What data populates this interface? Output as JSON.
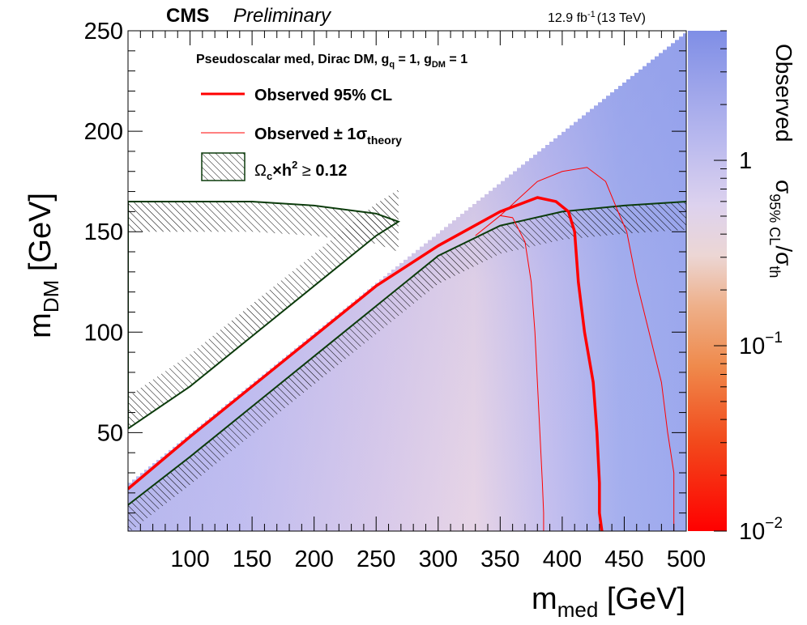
{
  "header": {
    "experiment": "CMS",
    "status": "Preliminary",
    "lumi_value": "12.9 fb",
    "lumi_exp": "-1",
    "lumi_energy": "(13 TeV)"
  },
  "model": {
    "prefix": "Pseudoscalar med, Dirac DM, g",
    "q_sub": "q",
    "middle": " = 1, g",
    "dm_sub": "DM",
    "suffix": " = 1"
  },
  "legend": {
    "observed": "Observed 95% CL",
    "observed_theory_prefix": "Observed ± 1σ",
    "observed_theory_sub": "theory",
    "relic_omega": "Ω",
    "relic_c": "c",
    "relic_mid": "×h",
    "relic_sup": "2",
    "relic_cond": " ≥ ",
    "relic_value": "0.12"
  },
  "colors": {
    "observed": "#ff0000",
    "relic_line": "#0b3b0b",
    "hatch": "#000000",
    "colorbar_low": "#ff0000",
    "colorbar_mid": "#f0dede",
    "colorbar_high": "#7f8ee6"
  },
  "chart_data": {
    "type": "heatmap",
    "xlabel_main": "m",
    "xlabel_sub": "med",
    "xlabel_unit": " [GeV]",
    "ylabel_main": "m",
    "ylabel_sub": "DM",
    "ylabel_unit": " [GeV]",
    "xlim": [
      50,
      500
    ],
    "ylim": [
      1,
      250
    ],
    "xticks": [
      100,
      150,
      200,
      250,
      300,
      350,
      400,
      450,
      500
    ],
    "yticks": [
      50,
      100,
      150,
      200,
      250
    ],
    "zaxis": {
      "label_main": "Observed",
      "label_ratio_num": "σ",
      "label_ratio_num_sub": "95% CL",
      "label_ratio_den": "/σ",
      "label_ratio_den_sub": "th",
      "scale": "log",
      "range": [
        0.01,
        5
      ],
      "ticks": [
        {
          "base": "1",
          "exp": "",
          "value": 1
        },
        {
          "base": "10",
          "exp": "−1",
          "value": 0.1
        },
        {
          "base": "10",
          "exp": "−2",
          "value": 0.01
        }
      ]
    },
    "kinematic_boundary": {
      "x": [
        50,
        490
      ],
      "y": [
        25,
        245
      ]
    },
    "observed_limit": {
      "x": [
        50,
        100,
        150,
        200,
        250,
        300,
        350,
        380,
        395,
        405,
        410,
        413,
        418,
        425,
        428,
        430,
        430,
        432
      ],
      "y": [
        22,
        48,
        73,
        98,
        123,
        143,
        160,
        167,
        165,
        160,
        150,
        125,
        100,
        75,
        50,
        25,
        10,
        1
      ]
    },
    "observed_plus1sigma": {
      "x": [
        350,
        380,
        400,
        420,
        435,
        445,
        452,
        460,
        470,
        480,
        485,
        490,
        490
      ],
      "y": [
        158,
        175,
        180,
        182,
        175,
        160,
        150,
        125,
        100,
        75,
        50,
        30,
        1
      ]
    },
    "observed_minus1sigma": {
      "x": [
        330,
        350,
        360,
        370,
        375,
        378,
        380,
        382,
        384,
        385,
        385
      ],
      "y": [
        148,
        158,
        157,
        145,
        125,
        100,
        75,
        50,
        25,
        10,
        1
      ]
    },
    "relic_upper": {
      "x": [
        50,
        100,
        150,
        200,
        250,
        268
      ],
      "y": [
        165,
        165,
        165,
        163,
        159,
        155
      ]
    },
    "relic_lower": {
      "x": [
        50,
        100,
        150,
        200,
        250,
        268
      ],
      "y": [
        52,
        73,
        98,
        123,
        148,
        155
      ]
    },
    "relic_diag": {
      "x": [
        50,
        100,
        150,
        200,
        250,
        300,
        350,
        400,
        450,
        500
      ],
      "y": [
        14,
        38,
        63,
        88,
        113,
        138,
        153,
        160,
        163,
        165
      ]
    }
  }
}
